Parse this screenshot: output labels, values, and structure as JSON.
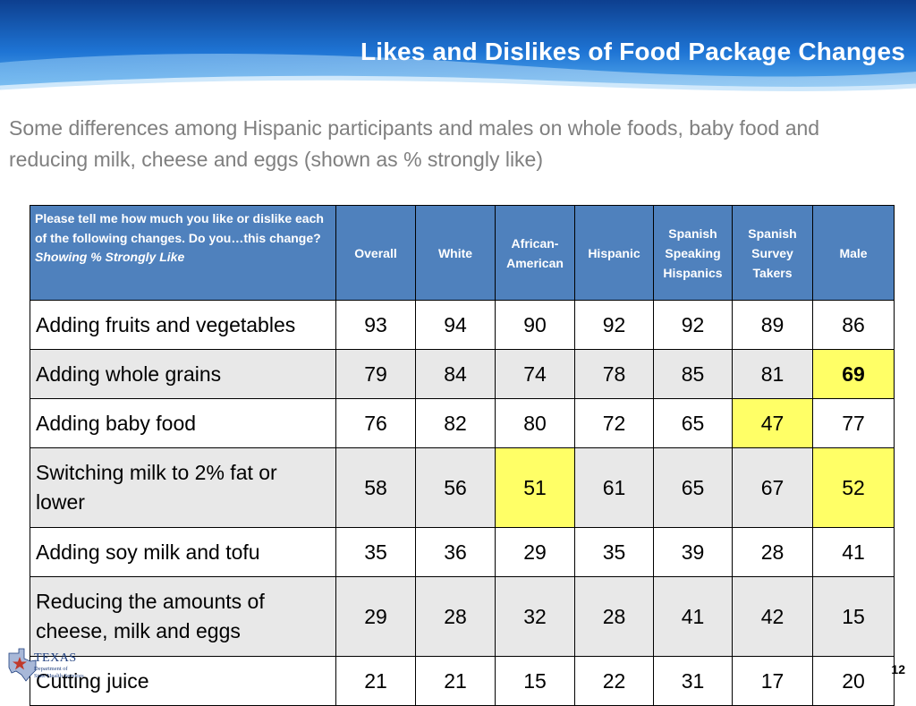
{
  "title": "Likes and Dislikes of Food Package Changes",
  "subtitle": "Some differences among Hispanic participants and males on whole foods, baby food and reducing milk, cheese and eggs (shown as % strongly like)",
  "table": {
    "question": "Please tell me how much you like or dislike each of the following changes.   Do you…this change?",
    "question_note": "Showing % Strongly Like",
    "columns": [
      "Overall",
      "White",
      "African-American",
      "Hispanic",
      "Spanish Speaking Hispanics",
      "Spanish Survey Takers",
      "Male"
    ],
    "rows": [
      {
        "label": "Adding fruits and vegetables",
        "values": [
          "93",
          "94",
          "90",
          "92",
          "92",
          "89",
          "86"
        ],
        "highlight": []
      },
      {
        "label": "Adding whole grains",
        "values": [
          "79",
          "84",
          "74",
          "78",
          "85",
          "81",
          "69"
        ],
        "highlight": [
          6
        ]
      },
      {
        "label": "Adding baby food",
        "values": [
          "76",
          "82",
          "80",
          "72",
          "65",
          "47",
          "77"
        ],
        "highlight": [
          5
        ]
      },
      {
        "label": "Switching milk to 2% fat or lower",
        "values": [
          "58",
          "56",
          "51",
          "61",
          "65",
          "67",
          "52"
        ],
        "highlight": [
          2,
          6
        ]
      },
      {
        "label": "Adding soy milk and tofu",
        "values": [
          "35",
          "36",
          "29",
          "35",
          "39",
          "28",
          "41"
        ],
        "highlight": []
      },
      {
        "label": "Reducing the amounts of cheese, milk and eggs",
        "values": [
          "29",
          "28",
          "32",
          "28",
          "41",
          "42",
          "15"
        ],
        "highlight": []
      },
      {
        "label": "Cutting juice",
        "values": [
          "21",
          "21",
          "15",
          "22",
          "31",
          "17",
          "20"
        ],
        "highlight": []
      }
    ],
    "bold_cells": [
      [
        1,
        6
      ]
    ]
  },
  "colors": {
    "header_fill": "#4f81bd",
    "highlight": "#ffff66",
    "banner_blue": "#1565c0"
  },
  "logo": {
    "name": "TEXAS",
    "subtitle_line1": "Department of",
    "subtitle_line2": "State Health Services"
  },
  "page_number": "12"
}
